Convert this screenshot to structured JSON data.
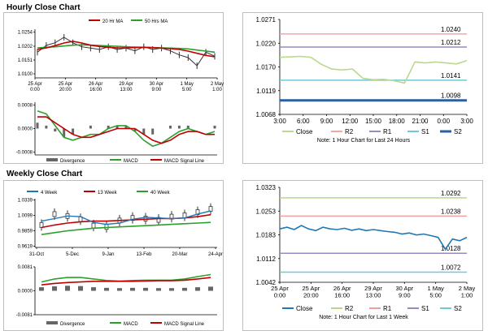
{
  "sections": {
    "hourly_title": "Hourly Close Chart",
    "weekly_title": "Weekly Close Chart"
  },
  "colors": {
    "ma_short": "#c00000",
    "ma_long": "#2ca02c",
    "price": "#333333",
    "macd": "#2ca02c",
    "signal": "#c00000",
    "divergence": "#666666",
    "close_line": "#b9d98f",
    "close_line_week": "#1f78b4",
    "r2": "#f4a6a6",
    "r1": "#9b89c4",
    "s1": "#6fc7d8",
    "s2": "#2f5f9e",
    "r2_week": "#b8d887",
    "r1_week": "#f0a0a0",
    "s1_week": "#9b89c4",
    "s2_week": "#6fc7d8"
  },
  "chart_data": [
    {
      "id": "hourly_price",
      "type": "line",
      "legend": [
        "20 Hr MA",
        "50 Hrs MA"
      ],
      "yticks": [
        "1.0254",
        "1.0202",
        "1.0151",
        "1.0100"
      ],
      "ylim": [
        1.0085,
        1.0265
      ],
      "xticks": [
        "25 Apr\n0:00",
        "25 Apr\n20:00",
        "26 Apr\n16:00",
        "29 Apr\n13:00",
        "30 Apr\n9:00",
        "1 May\n5:00",
        "2 May\n1:00"
      ],
      "series": [
        {
          "name": "20 Hr MA",
          "values": [
            1.019,
            1.0196,
            1.0204,
            1.0214,
            1.022,
            1.0214,
            1.0206,
            1.0201,
            1.0198,
            1.0196,
            1.0196,
            1.0197,
            1.0198,
            1.0197,
            1.0195,
            1.0193,
            1.019,
            1.0184,
            1.0176,
            1.0168,
            1.0163
          ]
        },
        {
          "name": "50 Hrs MA",
          "values": [
            1.0196,
            1.0198,
            1.02,
            1.0203,
            1.0206,
            1.0207,
            1.0206,
            1.0205,
            1.0203,
            1.0202,
            1.02,
            1.0199,
            1.0198,
            1.0197,
            1.0196,
            1.0195,
            1.0194,
            1.0192,
            1.0188,
            1.0184,
            1.018
          ]
        },
        {
          "name": "Price",
          "values": [
            1.018,
            1.0205,
            1.0215,
            1.0235,
            1.0215,
            1.02,
            1.0195,
            1.019,
            1.02,
            1.019,
            1.0195,
            1.0185,
            1.02,
            1.019,
            1.0195,
            1.0185,
            1.017,
            1.016,
            1.013,
            1.018,
            1.0165
          ]
        }
      ]
    },
    {
      "id": "hourly_macd",
      "type": "line",
      "yticks": [
        "0.0008",
        "0.0000",
        "-0.0008"
      ],
      "ylim": [
        -0.0009,
        0.0009
      ],
      "legend": [
        "Divergence",
        "MACD",
        "MACD Signal Line"
      ],
      "series": [
        {
          "name": "MACD",
          "values": [
            0.0006,
            0.0005,
            0.0001,
            -0.0003,
            -0.0004,
            -0.0003,
            -0.0002,
            -0.0002,
            0.0,
            0.0001,
            0.0001,
            -0.0001,
            -0.0004,
            -0.0006,
            -0.0005,
            -0.0003,
            -0.0001,
            0.0,
            -0.0001,
            -0.0002,
            -0.0001
          ]
        },
        {
          "name": "MACD Signal Line",
          "values": [
            0.0004,
            0.0004,
            0.0002,
            0.0,
            -0.0002,
            -0.0003,
            -0.0003,
            -0.0002,
            -0.0001,
            0.0,
            0.0,
            0.0,
            -0.0002,
            -0.0004,
            -0.0005,
            -0.0004,
            -0.0002,
            -0.0001,
            -0.0001,
            -0.0002,
            -0.0002
          ]
        },
        {
          "name": "Divergence",
          "values": [
            0.0002,
            0.0001,
            -0.0001,
            -0.0003,
            -0.0002,
            0.0,
            0.0001,
            0.0,
            0.0001,
            0.0001,
            0.0001,
            -0.0001,
            -0.0002,
            -0.0002,
            0.0,
            0.0001,
            0.0001,
            0.0001,
            0.0,
            0.0,
            0.0001
          ]
        }
      ]
    },
    {
      "id": "hourly_pivot",
      "type": "line",
      "yticks": [
        "1.0271",
        "1.0220",
        "1.0170",
        "1.0119",
        "1.0068"
      ],
      "ylim": [
        1.0068,
        1.0271
      ],
      "xticks": [
        "3:00",
        "6:00",
        "9:00",
        "12:00",
        "15:00",
        "18:00",
        "21:00",
        "0:00",
        "3:00"
      ],
      "levels": [
        {
          "name": "R2",
          "value": 1.024,
          "label": "1.0240"
        },
        {
          "name": "R1",
          "value": 1.0212,
          "label": "1.0212"
        },
        {
          "name": "S1",
          "value": 1.0141,
          "label": "1.0141"
        },
        {
          "name": "S2",
          "value": 1.0098,
          "label": "1.0098"
        }
      ],
      "close": [
        1.019,
        1.0191,
        1.0192,
        1.019,
        1.0175,
        1.0165,
        1.0163,
        1.0165,
        1.0145,
        1.0142,
        1.0143,
        1.014,
        1.0135,
        1.018,
        1.0178,
        1.018,
        1.0178,
        1.0176,
        1.0183
      ],
      "legend": [
        "Close",
        "R2",
        "R1",
        "S1",
        "S2"
      ],
      "note": "Note: 1 Hour Chart for Last 24 Hours"
    },
    {
      "id": "weekly_price",
      "type": "line",
      "legend": [
        "4 Week",
        "13 Week",
        "40 Week"
      ],
      "yticks": [
        "1.0339",
        "1.0099",
        "0.9859",
        "0.9619"
      ],
      "ylim": [
        0.96,
        1.036
      ],
      "xticks": [
        "31-Oct",
        "5-Dec",
        "9-Jan",
        "13-Feb",
        "20-Mar",
        "24-Apr"
      ],
      "series": [
        {
          "name": "4 Week",
          "values": [
            1.001,
            1.005,
            1.009,
            1.008,
            0.999,
            0.996,
            0.998,
            1.004,
            1.007,
            1.006,
            1.005,
            1.006,
            1.012,
            1.017
          ]
        },
        {
          "name": "13 Week",
          "values": [
            0.991,
            0.995,
            0.998,
            1.0,
            1.001,
            1.001,
            1.002,
            1.003,
            1.004,
            1.005,
            1.005,
            1.006,
            1.008,
            1.011
          ]
        },
        {
          "name": "40 Week",
          "values": [
            0.98,
            0.983,
            0.986,
            0.988,
            0.99,
            0.991,
            0.992,
            0.993,
            0.994,
            0.995,
            0.996,
            0.997,
            0.998,
            0.999
          ]
        },
        {
          "name": "Price",
          "values": [
            0.995,
            1.012,
            1.009,
            1.004,
            0.994,
            0.992,
            1.002,
            1.006,
            1.005,
            1.003,
            1.008,
            1.01,
            1.015,
            1.02
          ]
        }
      ]
    },
    {
      "id": "weekly_macd",
      "type": "line",
      "yticks": [
        "0.0081",
        "0.0000",
        "-0.0081"
      ],
      "ylim": [
        -0.0081,
        0.0081
      ],
      "legend": [
        "Divergence",
        "MACD",
        "MACD Signal Line"
      ],
      "series": [
        {
          "name": "MACD",
          "values": [
            0.003,
            0.004,
            0.0045,
            0.0045,
            0.004,
            0.0035,
            0.0033,
            0.0035,
            0.0036,
            0.0036,
            0.0036,
            0.004,
            0.0048,
            0.0055
          ]
        },
        {
          "name": "MACD Signal Line",
          "values": [
            0.002,
            0.0025,
            0.0028,
            0.003,
            0.0032,
            0.0032,
            0.0032,
            0.0032,
            0.0033,
            0.0034,
            0.0034,
            0.0036,
            0.004,
            0.0045
          ]
        },
        {
          "name": "Divergence",
          "values": [
            0.0012,
            0.0015,
            0.0017,
            0.0016,
            0.0012,
            0.001,
            0.0009,
            0.001,
            0.001,
            0.0009,
            0.0009,
            0.001,
            0.0012,
            0.0014
          ]
        }
      ]
    },
    {
      "id": "weekly_pivot",
      "type": "line",
      "yticks": [
        "1.0323",
        "1.0253",
        "1.0183",
        "1.0112",
        "1.0042"
      ],
      "ylim": [
        1.0042,
        1.0323
      ],
      "xticks": [
        "25 Apr\n0:00",
        "25 Apr\n20:00",
        "26 Apr\n16:00",
        "29 Apr\n13:00",
        "30 Apr\n9:00",
        "1 May\n5:00",
        "2 May\n1:00"
      ],
      "levels": [
        {
          "name": "R2",
          "value": 1.0292,
          "label": "1.0292"
        },
        {
          "name": "R1",
          "value": 1.0238,
          "label": "1.0238"
        },
        {
          "name": "S1",
          "value": 1.0128,
          "label": "1.0128"
        },
        {
          "name": "S2",
          "value": 1.0072,
          "label": "1.0072"
        }
      ],
      "close": [
        1.02,
        1.0205,
        1.0198,
        1.021,
        1.02,
        1.0195,
        1.0205,
        1.02,
        1.0198,
        1.0202,
        1.0196,
        1.02,
        1.0195,
        1.0198,
        1.0195,
        1.0192,
        1.019,
        1.0185,
        1.0188,
        1.0182,
        1.0185,
        1.018,
        1.0175,
        1.014,
        1.017,
        1.0165,
        1.0175
      ],
      "legend": [
        "Close",
        "R2",
        "R1",
        "S1",
        "S2"
      ],
      "note": "Note: 1 Hour Chart for Last 1 Week"
    }
  ]
}
